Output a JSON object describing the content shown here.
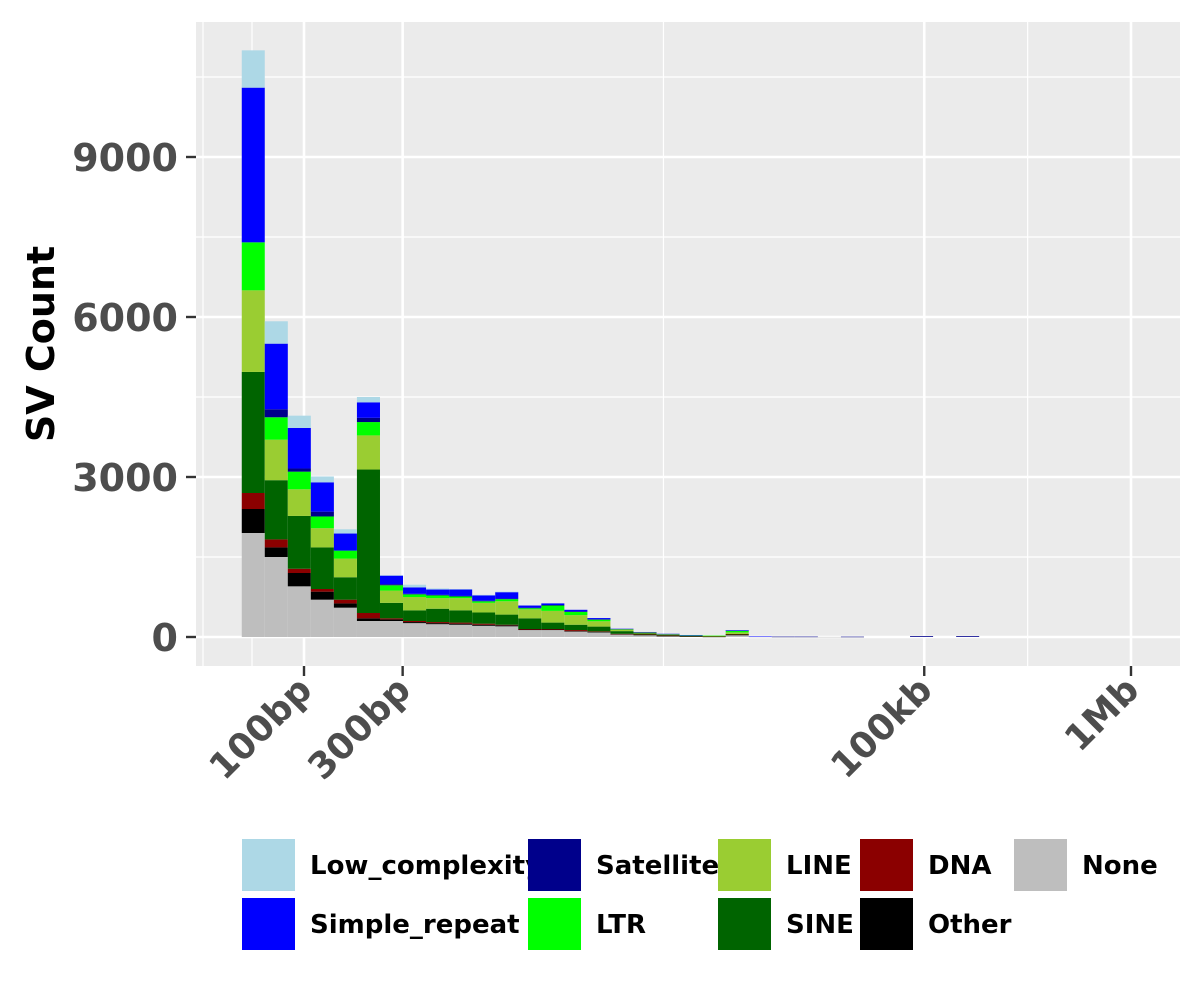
{
  "chart_data": {
    "type": "bar",
    "stacked": true,
    "x_scale": "log",
    "xlabel": "",
    "ylabel": "SV Count",
    "ylim": [
      0,
      11000
    ],
    "y_ticks": [
      0,
      3000,
      6000,
      9000
    ],
    "y_tick_labels": [
      "0",
      "3000",
      "6000",
      "9000"
    ],
    "x_ticks_bp": [
      100,
      300,
      100000,
      1000000
    ],
    "x_tick_labels": [
      "100bp",
      "300bp",
      "100kb",
      "1Mb"
    ],
    "grid": true,
    "legend_position": "bottom",
    "bin_edges_bp": [
      50,
      64.6,
      83.5,
      107.9,
      139.5,
      180.3,
      233.1,
      301.3,
      389.4,
      503.4,
      650.7,
      841.1,
      1087.2,
      1405.4,
      1816.6,
      2348.2,
      3035.3,
      3923.5,
      5071.6,
      6555.6,
      8474,
      10953.6,
      14158.9,
      18302,
      23657.4,
      30580,
      39528.3,
      51095,
      66046.3,
      85372.6,
      110353.8,
      142645.1,
      184385.7,
      238340.7,
      308083.7,
      398234.9,
      514766.2,
      665396.3
    ],
    "series": [
      {
        "name": "None",
        "color": "#bebebe",
        "values": [
          1950,
          1500,
          950,
          700,
          550,
          300,
          300,
          260,
          240,
          230,
          210,
          200,
          130,
          130,
          100,
          90,
          50,
          40,
          20,
          10,
          5,
          40,
          5,
          2,
          2,
          2,
          1,
          0,
          0,
          0,
          0,
          0,
          0,
          0,
          0,
          0,
          0
        ]
      },
      {
        "name": "Other",
        "color": "#000000",
        "values": [
          450,
          180,
          250,
          150,
          80,
          50,
          30,
          20,
          20,
          20,
          20,
          20,
          10,
          10,
          10,
          5,
          5,
          2,
          2,
          2,
          2,
          2,
          0,
          0,
          0,
          0,
          0,
          0,
          0,
          0,
          0,
          0,
          0,
          0,
          0,
          0,
          0
        ]
      },
      {
        "name": "DNA",
        "color": "#8b0000",
        "values": [
          300,
          150,
          80,
          50,
          70,
          100,
          20,
          20,
          20,
          20,
          20,
          10,
          10,
          10,
          20,
          10,
          5,
          5,
          5,
          5,
          5,
          5,
          0,
          0,
          0,
          0,
          0,
          0,
          0,
          0,
          0,
          0,
          0,
          0,
          0,
          0,
          0
        ]
      },
      {
        "name": "SINE",
        "color": "#006400",
        "values": [
          2270,
          1110,
          990,
          780,
          420,
          2690,
          290,
          200,
          250,
          230,
          210,
          190,
          200,
          120,
          100,
          90,
          50,
          20,
          10,
          5,
          5,
          10,
          0,
          0,
          0,
          0,
          0,
          0,
          0,
          0,
          0,
          0,
          0,
          0,
          0,
          0,
          0
        ]
      },
      {
        "name": "LINE",
        "color": "#9acd32",
        "values": [
          1530,
          760,
          500,
          360,
          350,
          640,
          230,
          250,
          200,
          230,
          180,
          250,
          170,
          220,
          180,
          100,
          30,
          20,
          15,
          5,
          5,
          30,
          0,
          0,
          0,
          0,
          0,
          0,
          0,
          0,
          0,
          0,
          0,
          0,
          0,
          0,
          0
        ]
      },
      {
        "name": "LTR",
        "color": "#00ff00",
        "values": [
          900,
          420,
          330,
          220,
          150,
          250,
          100,
          50,
          50,
          30,
          30,
          40,
          20,
          100,
          60,
          30,
          10,
          5,
          5,
          3,
          3,
          30,
          0,
          0,
          0,
          0,
          0,
          0,
          0,
          0,
          0,
          0,
          0,
          0,
          0,
          0,
          0
        ]
      },
      {
        "name": "Satellite",
        "color": "#00008b",
        "values": [
          0,
          150,
          60,
          90,
          0,
          80,
          20,
          10,
          10,
          10,
          10,
          10,
          10,
          10,
          10,
          10,
          0,
          0,
          0,
          0,
          0,
          5,
          0,
          5,
          5,
          0,
          5,
          0,
          0,
          15,
          0,
          15,
          0,
          0,
          0,
          0,
          0
        ]
      },
      {
        "name": "Simple_repeat",
        "color": "#0000ff",
        "values": [
          2900,
          1230,
          760,
          550,
          320,
          290,
          160,
          120,
          100,
          120,
          100,
          120,
          40,
          30,
          30,
          20,
          5,
          2,
          3,
          5,
          0,
          3,
          5,
          0,
          0,
          0,
          0,
          0,
          0,
          0,
          0,
          0,
          0,
          0,
          0,
          0,
          0
        ]
      },
      {
        "name": "Low_complexity",
        "color": "#add8e6",
        "values": [
          700,
          420,
          230,
          110,
          80,
          100,
          10,
          50,
          20,
          10,
          10,
          10,
          0,
          0,
          0,
          0,
          0,
          0,
          0,
          0,
          0,
          0,
          0,
          0,
          0,
          0,
          0,
          0,
          0,
          0,
          0,
          0,
          0,
          0,
          0,
          0,
          0
        ]
      }
    ]
  },
  "legend": {
    "items": [
      {
        "label": "Low_complexity",
        "color": "#add8e6"
      },
      {
        "label": "Simple_repeat",
        "color": "#0000ff"
      },
      {
        "label": "Satellite",
        "color": "#00008b"
      },
      {
        "label": "LTR",
        "color": "#00ff00"
      },
      {
        "label": "LINE",
        "color": "#9acd32"
      },
      {
        "label": "SINE",
        "color": "#006400"
      },
      {
        "label": "DNA",
        "color": "#8b0000"
      },
      {
        "label": "Other",
        "color": "#000000"
      },
      {
        "label": "None",
        "color": "#bebebe"
      }
    ]
  }
}
